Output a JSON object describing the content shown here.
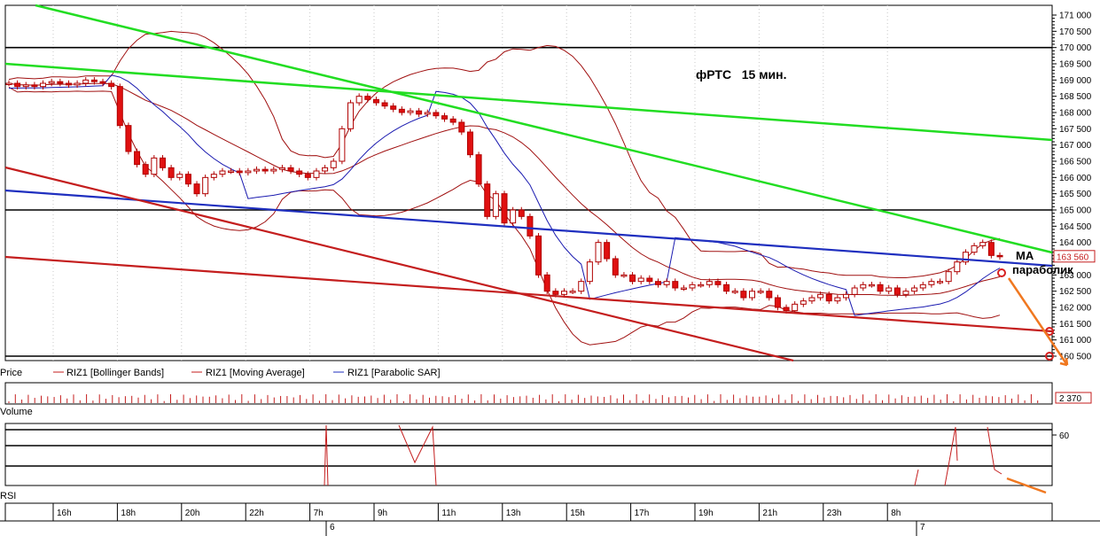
{
  "chart_data": {
    "type": "line",
    "title": "фРТС   15 мин.",
    "y_axis": {
      "min": 160500,
      "max": 171000,
      "ticks": [
        171000,
        170500,
        170000,
        169500,
        169000,
        168500,
        168000,
        167500,
        167000,
        166500,
        166000,
        165500,
        165000,
        164500,
        164000,
        163500,
        163000,
        162500,
        162000,
        161500,
        161000,
        160500
      ],
      "tick_labels": [
        "171 000",
        "170 500",
        "170 000",
        "169 500",
        "169 000",
        "168 500",
        "168 000",
        "167 500",
        "167 000",
        "166 500",
        "166 000",
        "165 500",
        "165 000",
        "164 500",
        "164 000",
        "163 500",
        "163 000",
        "162 500",
        "162 000",
        "161 500",
        "161 000",
        "160 500"
      ]
    },
    "last_price_label": "163 560",
    "horizontal_levels": [
      170000,
      165000,
      160500
    ],
    "x_axis": {
      "hour_labels": [
        "16h",
        "18h",
        "20h",
        "22h",
        "7h",
        "9h",
        "11h",
        "13h",
        "15h",
        "17h",
        "19h",
        "21h",
        "23h",
        "8h"
      ],
      "day_labels": [
        "6",
        "7"
      ]
    },
    "candles_close": [
      168900,
      168800,
      168850,
      168800,
      168900,
      168950,
      168900,
      168850,
      168900,
      169000,
      168950,
      168900,
      168800,
      167600,
      166800,
      166400,
      166100,
      166600,
      166300,
      166000,
      166100,
      165800,
      165500,
      166000,
      166100,
      166200,
      166200,
      166150,
      166200,
      166250,
      166200,
      166250,
      166300,
      166200,
      166100,
      166000,
      166200,
      166300,
      166500,
      167500,
      168300,
      168500,
      168400,
      168300,
      168200,
      168100,
      168000,
      168050,
      167950,
      168000,
      167900,
      167800,
      167700,
      167400,
      166700,
      165800,
      164800,
      165500,
      164600,
      165000,
      164800,
      164200,
      163000,
      162500,
      162400,
      162500,
      162500,
      162800,
      163400,
      164000,
      163500,
      163000,
      163000,
      162800,
      162900,
      162800,
      162700,
      162800,
      162600,
      162600,
      162700,
      162700,
      162800,
      162700,
      162500,
      162500,
      162300,
      162500,
      162500,
      162300,
      162000,
      161900,
      162100,
      162200,
      162300,
      162400,
      162200,
      162300,
      162400,
      162600,
      162700,
      162700,
      162500,
      162600,
      162400,
      162500,
      162600,
      162700,
      162800,
      162800,
      163100,
      163400,
      163700,
      163900,
      164000,
      163600,
      163560
    ],
    "series": [
      {
        "name": "RIZ1 [Bollinger Bands]"
      },
      {
        "name": "RIZ1 [Moving Average]"
      },
      {
        "name": "RIZ1 [Parabolic SAR]"
      }
    ],
    "panels": {
      "price": "Price",
      "volume": "Volume",
      "volume_label": "2 370",
      "rsi": "RSI",
      "rsi_tick": "60"
    },
    "annotations": [
      "MA",
      "параболик"
    ]
  }
}
